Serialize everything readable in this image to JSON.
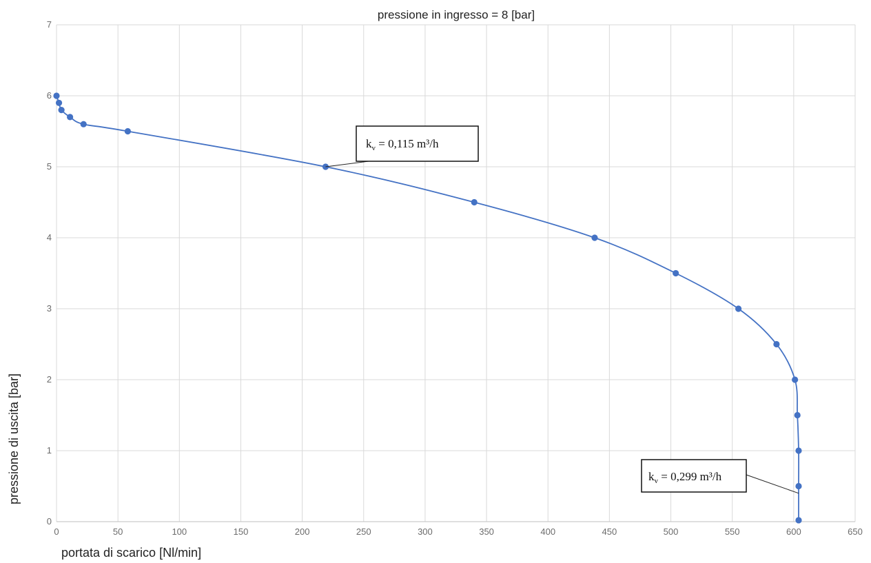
{
  "chart_data": {
    "type": "scatter",
    "title": "pressione in ingresso = 8 [bar]",
    "xlabel": "portata di scarico [Nl/min]",
    "ylabel": "pressione di uscita [bar]",
    "xlim": [
      0,
      650
    ],
    "ylim": [
      0,
      7
    ],
    "x_ticks": [
      0,
      50,
      100,
      150,
      200,
      250,
      300,
      350,
      400,
      450,
      500,
      550,
      600,
      650
    ],
    "y_ticks": [
      0,
      1,
      2,
      3,
      4,
      5,
      6,
      7
    ],
    "grid": true,
    "legend": "none",
    "series": [
      {
        "color": "#4472c4",
        "smooth_line": true,
        "points": [
          {
            "x": 0,
            "y": 6.0
          },
          {
            "x": 2,
            "y": 5.9
          },
          {
            "x": 4,
            "y": 5.8
          },
          {
            "x": 11,
            "y": 5.7
          },
          {
            "x": 22,
            "y": 5.6
          },
          {
            "x": 58,
            "y": 5.5
          },
          {
            "x": 219,
            "y": 5.0
          },
          {
            "x": 340,
            "y": 4.5
          },
          {
            "x": 438,
            "y": 4.0
          },
          {
            "x": 504,
            "y": 3.5
          },
          {
            "x": 555,
            "y": 3.0
          },
          {
            "x": 586,
            "y": 2.5
          },
          {
            "x": 601,
            "y": 2.0
          },
          {
            "x": 603,
            "y": 1.5
          },
          {
            "x": 604,
            "y": 1.0
          },
          {
            "x": 604,
            "y": 0.5
          },
          {
            "x": 604,
            "y": 0.02
          }
        ]
      }
    ],
    "annotations": [
      {
        "prefix": "k",
        "subscript": "v",
        "text": " = 0,115 m³/h",
        "target_x": 219,
        "target_y": 5.0
      },
      {
        "prefix": "k",
        "subscript": "v",
        "text": " = 0,299 m³/h",
        "target_x": 604,
        "target_y": 0.4
      }
    ]
  }
}
